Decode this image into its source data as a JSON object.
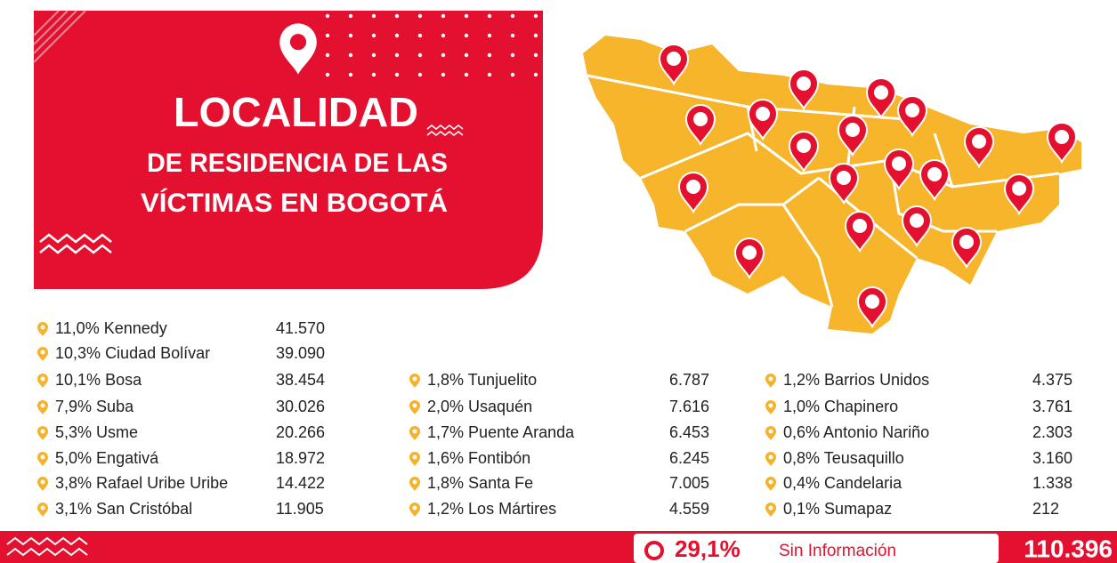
{
  "header": {
    "title": "LOCALIDAD",
    "subtitle_line1": "DE RESIDENCIA DE LAS",
    "subtitle_line2": "VÍCTIMAS EN BOGOTÁ"
  },
  "columns": [
    [
      {
        "pct": "11,0%",
        "name": "Kennedy",
        "value": "41.570"
      },
      {
        "pct": "10,3%",
        "name": "Ciudad Bolívar",
        "value": "39.090"
      },
      {
        "pct": "10,1%",
        "name": "Bosa",
        "value": "38.454"
      },
      {
        "pct": "7,9%",
        "name": "Suba",
        "value": "30.026"
      },
      {
        "pct": "5,3%",
        "name": "Usme",
        "value": "20.266"
      },
      {
        "pct": "5,0%",
        "name": "Engativá",
        "value": "18.972"
      },
      {
        "pct": "3,8%",
        "name": "Rafael Uribe Uribe",
        "value": "14.422"
      },
      {
        "pct": "3,1%",
        "name": "San Cristóbal",
        "value": "11.905"
      }
    ],
    [
      {
        "pct": "1,8%",
        "name": "Tunjuelito",
        "value": "6.787"
      },
      {
        "pct": "2,0%",
        "name": "Usaquén",
        "value": "7.616"
      },
      {
        "pct": "1,7%",
        "name": "Puente Aranda",
        "value": "6.453"
      },
      {
        "pct": "1,6%",
        "name": "Fontibón",
        "value": "6.245"
      },
      {
        "pct": "1,8%",
        "name": "Santa Fe",
        "value": "7.005"
      },
      {
        "pct": "1,2%",
        "name": "Los Mártires",
        "value": "4.559"
      }
    ],
    [
      {
        "pct": "1,2%",
        "name": "Barrios Unidos",
        "value": "4.375"
      },
      {
        "pct": "1,0%",
        "name": "Chapinero",
        "value": "3.761"
      },
      {
        "pct": "0,6%",
        "name": "Antonio Nariño",
        "value": "2.303"
      },
      {
        "pct": "0,8%",
        "name": "Teusaquillo",
        "value": "3.160"
      },
      {
        "pct": "0,4%",
        "name": "Candelaria",
        "value": "1.338"
      },
      {
        "pct": "0,1%",
        "name": "Sumapaz",
        "value": "212"
      }
    ]
  ],
  "footer": {
    "percent": "29,1%",
    "label": "Sin Información",
    "value": "110.396"
  }
}
